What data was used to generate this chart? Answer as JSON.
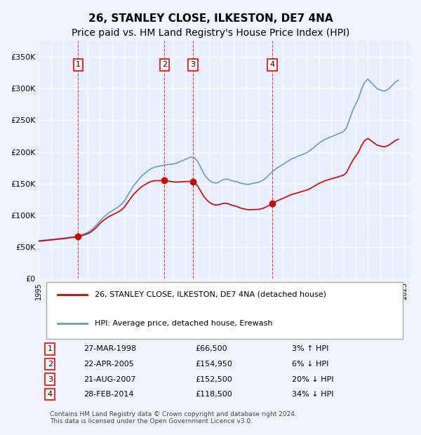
{
  "title": "26, STANLEY CLOSE, ILKESTON, DE7 4NA",
  "subtitle": "Price paid vs. HM Land Registry's House Price Index (HPI)",
  "xlabel": "",
  "ylabel": "",
  "ylim": [
    0,
    375000
  ],
  "yticks": [
    0,
    50000,
    100000,
    150000,
    200000,
    250000,
    300000,
    350000
  ],
  "ytick_labels": [
    "£0",
    "£50K",
    "£100K",
    "£150K",
    "£200K",
    "£250K",
    "£300K",
    "£350K"
  ],
  "background_color": "#f0f4ff",
  "plot_bg_color": "#e8eeff",
  "grid_color": "#ffffff",
  "hpi_color": "#6699cc",
  "sale_color": "#cc0000",
  "sale_marker_color": "#cc0000",
  "dashed_line_color": "#cc0000",
  "title_fontsize": 11,
  "subtitle_fontsize": 10,
  "legend_label_sale": "26, STANLEY CLOSE, ILKESTON, DE7 4NA (detached house)",
  "legend_label_hpi": "HPI: Average price, detached house, Erewash",
  "transactions": [
    {
      "num": 1,
      "date": "27-MAR-1998",
      "price": 66500,
      "pct": "3%",
      "dir": "↑",
      "year": 1998.23
    },
    {
      "num": 2,
      "date": "22-APR-2005",
      "price": 154950,
      "pct": "6%",
      "dir": "↓",
      "year": 2005.31
    },
    {
      "num": 3,
      "date": "21-AUG-2007",
      "price": 152500,
      "pct": "20%",
      "dir": "↓",
      "year": 2007.64
    },
    {
      "num": 4,
      "date": "28-FEB-2014",
      "price": 118500,
      "pct": "34%",
      "dir": "↓",
      "year": 2014.16
    }
  ],
  "footer": "Contains HM Land Registry data © Crown copyright and database right 2024.\nThis data is licensed under the Open Government Licence v3.0.",
  "hpi_data_x": [
    1995.0,
    1995.25,
    1995.5,
    1995.75,
    1996.0,
    1996.25,
    1996.5,
    1996.75,
    1997.0,
    1997.25,
    1997.5,
    1997.75,
    1998.0,
    1998.25,
    1998.5,
    1998.75,
    1999.0,
    1999.25,
    1999.5,
    1999.75,
    2000.0,
    2000.25,
    2000.5,
    2000.75,
    2001.0,
    2001.25,
    2001.5,
    2001.75,
    2002.0,
    2002.25,
    2002.5,
    2002.75,
    2003.0,
    2003.25,
    2003.5,
    2003.75,
    2004.0,
    2004.25,
    2004.5,
    2004.75,
    2005.0,
    2005.25,
    2005.5,
    2005.75,
    2006.0,
    2006.25,
    2006.5,
    2006.75,
    2007.0,
    2007.25,
    2007.5,
    2007.75,
    2008.0,
    2008.25,
    2008.5,
    2008.75,
    2009.0,
    2009.25,
    2009.5,
    2009.75,
    2010.0,
    2010.25,
    2010.5,
    2010.75,
    2011.0,
    2011.25,
    2011.5,
    2011.75,
    2012.0,
    2012.25,
    2012.5,
    2012.75,
    2013.0,
    2013.25,
    2013.5,
    2013.75,
    2014.0,
    2014.25,
    2014.5,
    2014.75,
    2015.0,
    2015.25,
    2015.5,
    2015.75,
    2016.0,
    2016.25,
    2016.5,
    2016.75,
    2017.0,
    2017.25,
    2017.5,
    2017.75,
    2018.0,
    2018.25,
    2018.5,
    2018.75,
    2019.0,
    2019.25,
    2019.5,
    2019.75,
    2020.0,
    2020.25,
    2020.5,
    2020.75,
    2021.0,
    2021.25,
    2021.5,
    2021.75,
    2022.0,
    2022.25,
    2022.5,
    2022.75,
    2023.0,
    2023.25,
    2023.5,
    2023.75,
    2024.0,
    2024.25,
    2024.5
  ],
  "hpi_data_y": [
    60000,
    60500,
    61000,
    61500,
    62000,
    62500,
    63000,
    63500,
    64000,
    64500,
    65500,
    66000,
    66500,
    67500,
    69000,
    71000,
    73000,
    76000,
    80000,
    85000,
    91000,
    96000,
    100000,
    104000,
    107000,
    110000,
    113000,
    117000,
    122000,
    130000,
    138000,
    146000,
    152000,
    158000,
    163000,
    167000,
    171000,
    174000,
    176000,
    177000,
    178000,
    179000,
    180000,
    180500,
    181000,
    182000,
    184000,
    186000,
    188000,
    190000,
    192000,
    191000,
    186000,
    177000,
    167000,
    160000,
    155000,
    152000,
    151000,
    152000,
    155000,
    157000,
    157000,
    155000,
    154000,
    153000,
    151000,
    150000,
    149000,
    149000,
    150000,
    151000,
    152000,
    154000,
    157000,
    161000,
    166000,
    170000,
    174000,
    177000,
    180000,
    183000,
    186000,
    189000,
    191000,
    193000,
    195000,
    197000,
    199000,
    202000,
    206000,
    210000,
    214000,
    217000,
    220000,
    222000,
    224000,
    226000,
    228000,
    230000,
    232000,
    238000,
    252000,
    265000,
    275000,
    285000,
    300000,
    310000,
    315000,
    310000,
    305000,
    300000,
    298000,
    296000,
    297000,
    300000,
    305000,
    310000,
    313000
  ]
}
